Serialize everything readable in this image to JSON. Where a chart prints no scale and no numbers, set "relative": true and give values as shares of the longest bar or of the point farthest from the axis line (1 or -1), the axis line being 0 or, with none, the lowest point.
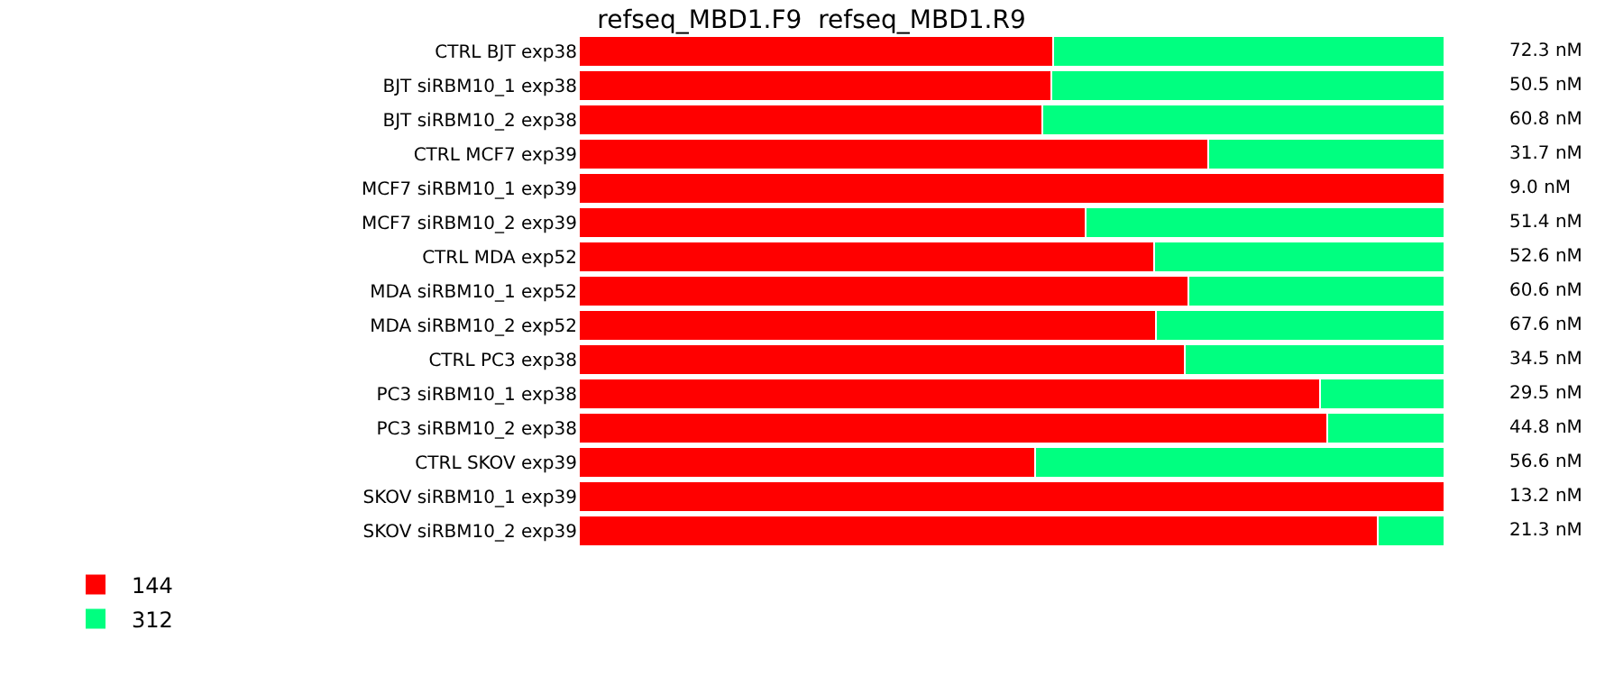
{
  "chart_data": {
    "type": "bar",
    "title": "refseq_MBD1.F9  refseq_MBD1.R9",
    "orientation": "horizontal",
    "stacked": true,
    "relative": true,
    "legend": "bottom left",
    "categories": [
      "CTRL BJT exp38",
      "BJT siRBM10_1 exp38",
      "BJT siRBM10_2 exp38",
      "CTRL MCF7 exp39",
      "MCF7 siRBM10_1 exp39",
      "MCF7 siRBM10_2 exp39",
      "CTRL MDA exp52",
      "MDA siRBM10_1 exp52",
      "MDA siRBM10_2 exp52",
      "CTRL PC3 exp38",
      "PC3 siRBM10_1 exp38",
      "PC3 siRBM10_2 exp38",
      "CTRL SKOV exp39",
      "SKOV siRBM10_1 exp39",
      "SKOV siRBM10_2 exp39"
    ],
    "series": [
      {
        "name": "144",
        "color": "#ff0000",
        "values": [
          0.548,
          0.546,
          0.535,
          0.727,
          1.0,
          0.585,
          0.665,
          0.704,
          0.667,
          0.7,
          0.856,
          0.865,
          0.527,
          1.0,
          0.923
        ]
      },
      {
        "name": "312",
        "color": "#00ff80",
        "values": [
          0.452,
          0.454,
          0.465,
          0.273,
          0.0,
          0.415,
          0.335,
          0.296,
          0.333,
          0.3,
          0.144,
          0.135,
          0.473,
          0.0,
          0.077
        ]
      }
    ],
    "annotations": [
      "72.3 nM",
      "50.5 nM",
      "60.8 nM",
      "31.7 nM",
      "9.0 nM",
      "51.4 nM",
      "52.6 nM",
      "60.6 nM",
      "67.6 nM",
      "34.5 nM",
      "29.5 nM",
      "44.8 nM",
      "56.6 nM",
      "13.2 nM",
      "21.3 nM"
    ]
  }
}
